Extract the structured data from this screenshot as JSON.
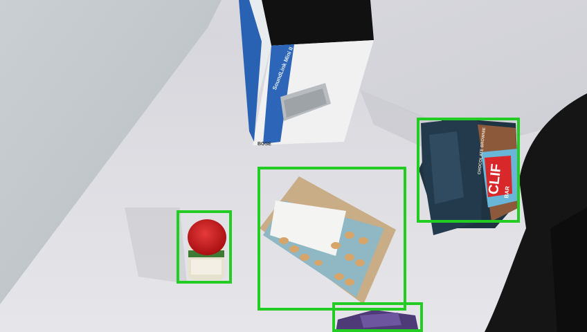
{
  "scene": {
    "speaker_box": {
      "brand": "BOSE",
      "product": "SoundLink Mini II"
    },
    "clif_bar_box": {
      "brand": "CLIF",
      "sub": "BAR",
      "flavor": "CHOCOLATE BROWNIE"
    }
  },
  "detections": [
    {
      "label": "jar"
    },
    {
      "label": "blister-pack"
    },
    {
      "label": "clif-bar-box"
    },
    {
      "label": "purple-object"
    }
  ],
  "colors": {
    "bbox": "#22cc22"
  }
}
